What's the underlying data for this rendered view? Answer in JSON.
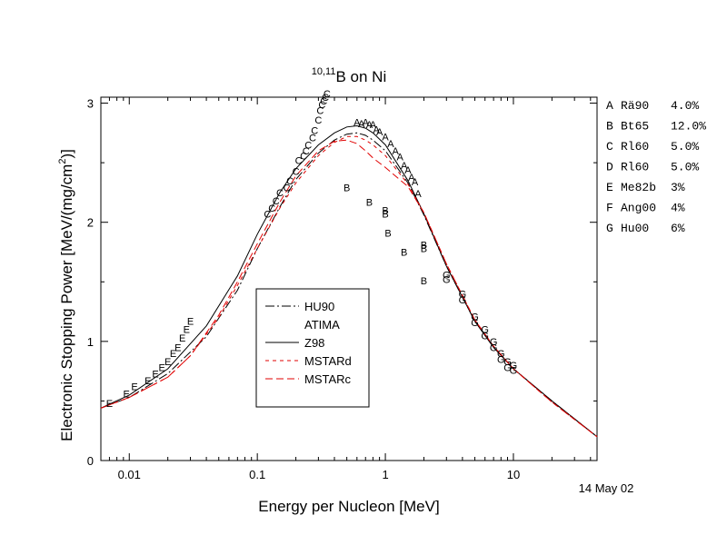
{
  "chart_data": {
    "type": "line",
    "title": "B on Ni",
    "title_superscript": "10,11",
    "xlabel": "Energy per Nucleon [MeV]",
    "ylabel": "Electronic Stopping Power [MeV/(mg/cm",
    "ylabel_sup": "2",
    "ylabel_tail": ")]",
    "x_scale": "log",
    "xlim": [
      0.006,
      45
    ],
    "ylim": [
      0,
      3.05
    ],
    "x_ticks": [
      0.01,
      0.1,
      1,
      10
    ],
    "x_tick_labels": [
      "0.01",
      "0.1",
      "1",
      "10"
    ],
    "y_ticks": [
      0,
      1,
      2,
      3
    ],
    "y_tick_labels": [
      "0",
      "1",
      "2",
      "3"
    ],
    "date_stamp": "14 May 02",
    "grid": false,
    "legend_position": "center-left inside",
    "legend": [
      {
        "name": "HU90",
        "style": "dashdot",
        "color": "#000000"
      },
      {
        "name": "ATIMA",
        "style": "none",
        "color": "#000000"
      },
      {
        "name": "Z98",
        "style": "solid",
        "color": "#000000"
      },
      {
        "name": "MSTARd",
        "style": "dash",
        "color": "#e00000"
      },
      {
        "name": "MSTARc",
        "style": "longdash",
        "color": "#e00000"
      }
    ],
    "reference_list": [
      {
        "code": "A",
        "ref": "Rä90",
        "err": "4.0%"
      },
      {
        "code": "B",
        "ref": "Bt65",
        "err": "12.0%"
      },
      {
        "code": "C",
        "ref": "Rl60",
        "err": "5.0%"
      },
      {
        "code": "D",
        "ref": "Rl60",
        "err": "5.0%"
      },
      {
        "code": "E",
        "ref": "Me82b",
        "err": "3%"
      },
      {
        "code": "F",
        "ref": "Ang00",
        "err": "4%"
      },
      {
        "code": "G",
        "ref": "Hu00",
        "err": "6%"
      }
    ],
    "series": [
      {
        "name": "Z98",
        "style": "solid",
        "color": "#000000",
        "x": [
          0.006,
          0.01,
          0.02,
          0.04,
          0.07,
          0.1,
          0.15,
          0.2,
          0.3,
          0.4,
          0.5,
          0.6,
          0.7,
          0.8,
          1,
          1.5,
          2,
          3,
          5,
          7,
          10,
          20,
          45
        ],
        "y": [
          0.44,
          0.55,
          0.77,
          1.13,
          1.55,
          1.9,
          2.25,
          2.45,
          2.65,
          2.75,
          2.8,
          2.81,
          2.79,
          2.75,
          2.65,
          2.35,
          2.07,
          1.63,
          1.17,
          0.95,
          0.77,
          0.5,
          0.2
        ]
      },
      {
        "name": "HU90",
        "style": "dashdot",
        "color": "#000000",
        "x": [
          0.006,
          0.01,
          0.02,
          0.04,
          0.07,
          0.1,
          0.15,
          0.2,
          0.3,
          0.4,
          0.5,
          0.6,
          0.7,
          0.8,
          1,
          1.5,
          2,
          3,
          5,
          7,
          10,
          20,
          45
        ],
        "y": [
          0.44,
          0.53,
          0.73,
          1.04,
          1.43,
          1.78,
          2.13,
          2.36,
          2.58,
          2.69,
          2.74,
          2.75,
          2.73,
          2.69,
          2.6,
          2.33,
          2.06,
          1.63,
          1.17,
          0.95,
          0.77,
          0.5,
          0.2
        ]
      },
      {
        "name": "MSTARd",
        "style": "dash",
        "color": "#e00000",
        "x": [
          0.006,
          0.01,
          0.02,
          0.03,
          0.05,
          0.07,
          0.1,
          0.15,
          0.2,
          0.3,
          0.4,
          0.5,
          0.6,
          0.7,
          0.8,
          1,
          1.5,
          2,
          3,
          5,
          7,
          10,
          20,
          45
        ],
        "y": [
          0.44,
          0.53,
          0.7,
          0.88,
          1.2,
          1.47,
          1.78,
          2.12,
          2.33,
          2.56,
          2.67,
          2.72,
          2.72,
          2.69,
          2.65,
          2.56,
          2.32,
          2.08,
          1.65,
          1.18,
          0.96,
          0.77,
          0.49,
          0.2
        ]
      },
      {
        "name": "MSTARc",
        "style": "longdash",
        "color": "#e00000",
        "x": [
          0.006,
          0.01,
          0.02,
          0.03,
          0.05,
          0.07,
          0.1,
          0.15,
          0.2,
          0.3,
          0.4,
          0.5,
          0.6,
          0.7,
          0.8,
          1,
          1.5,
          2,
          3,
          5,
          7,
          10,
          20,
          45
        ],
        "y": [
          0.44,
          0.53,
          0.7,
          0.88,
          1.22,
          1.5,
          1.82,
          2.17,
          2.39,
          2.6,
          2.68,
          2.69,
          2.66,
          2.6,
          2.54,
          2.46,
          2.3,
          2.08,
          1.65,
          1.18,
          0.96,
          0.77,
          0.49,
          0.2
        ]
      }
    ],
    "points": {
      "A": {
        "x": [
          0.6,
          0.65,
          0.7,
          0.75,
          0.8,
          0.85,
          0.9,
          1.0,
          1.1,
          1.2,
          1.3,
          1.4,
          1.5,
          1.6,
          1.7,
          1.8
        ],
        "y": [
          2.84,
          2.83,
          2.84,
          2.82,
          2.82,
          2.78,
          2.76,
          2.72,
          2.66,
          2.6,
          2.55,
          2.48,
          2.44,
          2.38,
          2.34,
          2.24
        ]
      },
      "B": {
        "x": [
          0.5,
          0.75,
          1.0,
          1.0,
          1.05,
          1.4,
          2.0,
          2.0,
          2.0
        ],
        "y": [
          2.29,
          2.17,
          2.1,
          2.07,
          1.91,
          1.75,
          1.81,
          1.78,
          1.51
        ]
      },
      "C": {
        "x": [
          0.12,
          0.13,
          0.14,
          0.15,
          0.17,
          0.18,
          0.2,
          0.21,
          0.23,
          0.24,
          0.25,
          0.27,
          0.28,
          0.3,
          0.31,
          0.32,
          0.33,
          0.34,
          0.35
        ],
        "y": [
          2.07,
          2.12,
          2.18,
          2.25,
          2.29,
          2.35,
          2.43,
          2.52,
          2.56,
          2.6,
          2.65,
          2.71,
          2.77,
          2.86,
          2.94,
          2.99,
          3.02,
          3.05,
          3.08
        ]
      },
      "E": {
        "x": [
          0.007,
          0.0095,
          0.011,
          0.014,
          0.016,
          0.018,
          0.02,
          0.022,
          0.024,
          0.026,
          0.028,
          0.03
        ],
        "y": [
          0.48,
          0.56,
          0.62,
          0.67,
          0.73,
          0.78,
          0.83,
          0.9,
          0.95,
          1.03,
          1.1,
          1.17
        ]
      },
      "G": {
        "x": [
          3.0,
          3.0,
          4.0,
          4.0,
          5.0,
          5.0,
          6.0,
          6.0,
          7.0,
          7.0,
          8.0,
          8.0,
          9.0,
          9.0,
          10.0,
          10.0
        ],
        "y": [
          1.56,
          1.52,
          1.4,
          1.35,
          1.21,
          1.16,
          1.1,
          1.05,
          1.0,
          0.95,
          0.9,
          0.85,
          0.83,
          0.78,
          0.8,
          0.76
        ]
      }
    }
  }
}
